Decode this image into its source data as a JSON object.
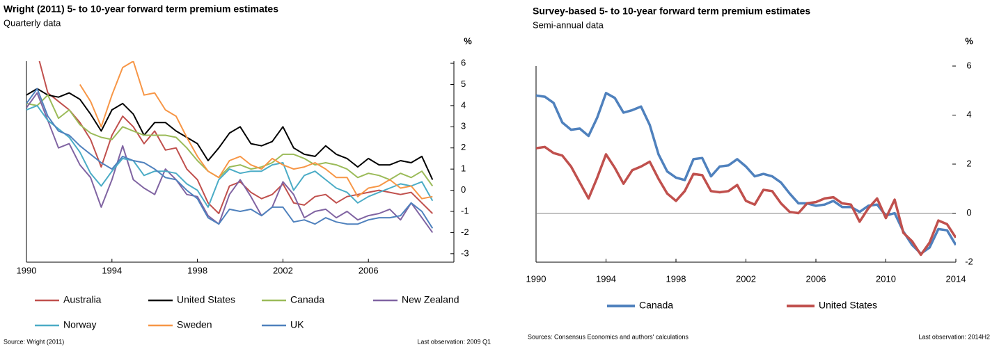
{
  "chart_data": [
    {
      "type": "line",
      "title": "Wright (2011)  5- to 10-year forward term premium estimates",
      "subtitle": "Quarterly data",
      "unit": "%",
      "source": "Source: Wright (2011)",
      "note": "Last observation: 2009 Q1",
      "x": [
        1990,
        1990.5,
        1991,
        1991.5,
        1992,
        1992.5,
        1993,
        1993.5,
        1994,
        1994.5,
        1995,
        1995.5,
        1996,
        1996.5,
        1997,
        1997.5,
        1998,
        1998.5,
        1999,
        1999.5,
        2000,
        2000.5,
        2001,
        2001.5,
        2002,
        2002.5,
        2003,
        2003.5,
        2004,
        2004.5,
        2005,
        2005.5,
        2006,
        2006.5,
        2007,
        2007.5,
        2008,
        2008.5,
        2009
      ],
      "xlim": [
        1990,
        2010
      ],
      "xticks": [
        1990,
        1994,
        1998,
        2002,
        2006
      ],
      "ylim": [
        -3.4,
        6.1
      ],
      "yticks": [
        6,
        5,
        4,
        3,
        2,
        1,
        0,
        -1,
        -2,
        -3
      ],
      "series": [
        {
          "name": "Australia",
          "color": "#c0504d",
          "values": [
            null,
            6.5,
            4.6,
            4.2,
            3.8,
            3.2,
            2.4,
            1.1,
            2.6,
            3.5,
            3.0,
            2.2,
            2.8,
            1.9,
            2.0,
            1.0,
            0.5,
            -0.6,
            -1.1,
            0.2,
            0.4,
            -0.1,
            -0.4,
            -0.2,
            0.3,
            -0.6,
            -0.7,
            -0.3,
            -0.2,
            -0.6,
            -0.3,
            -0.2,
            -0.1,
            0.0,
            -0.1,
            -0.2,
            -0.1,
            -0.6,
            -1.1
          ]
        },
        {
          "name": "United States",
          "color": "#000000",
          "values": [
            4.5,
            4.8,
            4.5,
            4.4,
            4.6,
            4.3,
            3.6,
            2.8,
            3.8,
            4.1,
            3.6,
            2.6,
            3.2,
            3.2,
            2.8,
            2.5,
            2.2,
            1.4,
            2.0,
            2.7,
            3.0,
            2.2,
            2.1,
            2.3,
            3.0,
            2.0,
            1.7,
            1.6,
            2.1,
            1.7,
            1.5,
            1.1,
            1.5,
            1.2,
            1.2,
            1.4,
            1.3,
            1.6,
            0.5
          ]
        },
        {
          "name": "Canada",
          "color": "#9bbb59",
          "values": [
            4.1,
            4.0,
            4.5,
            3.4,
            3.8,
            3.1,
            2.7,
            2.5,
            2.4,
            3.0,
            2.8,
            2.6,
            2.6,
            2.6,
            2.5,
            2.0,
            1.4,
            0.9,
            0.6,
            1.1,
            1.2,
            1.0,
            1.1,
            1.3,
            1.7,
            1.7,
            1.5,
            1.2,
            1.3,
            1.2,
            1.0,
            0.6,
            0.8,
            0.7,
            0.5,
            0.8,
            0.6,
            0.9,
            0.2
          ]
        },
        {
          "name": "New Zealand",
          "color": "#8064a2",
          "values": [
            3.9,
            4.6,
            3.3,
            2.0,
            2.2,
            1.2,
            0.6,
            -0.8,
            0.5,
            2.1,
            0.5,
            0.1,
            -0.2,
            1.0,
            0.5,
            -0.2,
            -0.3,
            -1.2,
            -1.6,
            -0.2,
            0.5,
            -0.3,
            -1.2,
            -0.8,
            0.4,
            -0.2,
            -1.3,
            -1.0,
            -0.9,
            -1.3,
            -1.0,
            -1.4,
            -1.2,
            -1.1,
            -0.9,
            -1.4,
            -0.6,
            -1.3,
            -2.0
          ]
        },
        {
          "name": "Norway",
          "color": "#4bacc6",
          "values": [
            3.8,
            4.0,
            3.3,
            2.9,
            2.5,
            1.8,
            0.8,
            0.2,
            0.9,
            1.5,
            1.4,
            0.7,
            0.9,
            0.9,
            0.8,
            0.3,
            0.0,
            -0.8,
            0.5,
            1.0,
            0.8,
            0.9,
            0.9,
            1.2,
            1.3,
            0.0,
            0.7,
            0.9,
            0.5,
            0.1,
            -0.1,
            -0.6,
            -0.3,
            -0.1,
            0.1,
            0.3,
            0.2,
            0.4,
            -0.5
          ]
        },
        {
          "name": "Sweden",
          "color": "#f79646",
          "values": [
            null,
            null,
            null,
            null,
            null,
            5.0,
            4.2,
            3.0,
            4.5,
            5.8,
            6.1,
            4.5,
            4.6,
            3.8,
            3.5,
            2.5,
            1.6,
            0.9,
            0.6,
            1.4,
            1.6,
            1.2,
            1.0,
            1.5,
            1.2,
            1.0,
            1.1,
            1.3,
            1.0,
            0.6,
            0.6,
            -0.3,
            0.1,
            0.2,
            0.5,
            0.1,
            0.2,
            -0.4,
            -0.3
          ]
        },
        {
          "name": "UK",
          "color": "#4f81bd",
          "values": [
            4.1,
            4.8,
            3.5,
            2.8,
            2.6,
            2.1,
            1.7,
            1.3,
            1.0,
            1.6,
            1.4,
            1.3,
            1.0,
            0.6,
            0.5,
            0.0,
            -0.4,
            -1.3,
            -1.6,
            -0.9,
            -1.0,
            -0.9,
            -1.2,
            -0.8,
            -0.8,
            -1.5,
            -1.4,
            -1.6,
            -1.3,
            -1.5,
            -1.6,
            -1.6,
            -1.4,
            -1.3,
            -1.3,
            -1.2,
            -0.6,
            -1.0,
            -1.8
          ]
        }
      ],
      "zero_line": false
    },
    {
      "type": "line",
      "title": "Survey-based 5- to 10-year forward term premium estimates",
      "subtitle": "Semi-annual data",
      "unit": "%",
      "source": "Sources: Consensus  Economics and authors' calculations",
      "note": "Last observation: 2014H2",
      "x": [
        1990,
        1990.5,
        1991,
        1991.5,
        1992,
        1992.5,
        1993,
        1993.5,
        1994,
        1994.5,
        1995,
        1995.5,
        1996,
        1996.5,
        1997,
        1997.5,
        1998,
        1998.5,
        1999,
        1999.5,
        2000,
        2000.5,
        2001,
        2001.5,
        2002,
        2002.5,
        2003,
        2003.5,
        2004,
        2004.5,
        2005,
        2005.5,
        2006,
        2006.5,
        2007,
        2007.5,
        2008,
        2008.5,
        2009,
        2009.5,
        2010,
        2010.5,
        2011,
        2011.5,
        2012,
        2012.5,
        2013,
        2013.5,
        2014
      ],
      "xlim": [
        1990,
        2014
      ],
      "xticks": [
        1990,
        1994,
        1998,
        2002,
        2006,
        2010,
        2014
      ],
      "ylim": [
        -2,
        6
      ],
      "yticks": [
        6,
        4,
        2,
        0,
        -2
      ],
      "series": [
        {
          "name": "Canada",
          "color": "#4f81bd",
          "values": [
            4.8,
            4.75,
            4.5,
            3.7,
            3.4,
            3.45,
            3.15,
            3.9,
            4.9,
            4.7,
            4.1,
            4.2,
            4.35,
            3.6,
            2.4,
            1.7,
            1.45,
            1.35,
            2.2,
            2.25,
            1.5,
            1.9,
            1.95,
            2.2,
            1.9,
            1.5,
            1.6,
            1.5,
            1.25,
            0.8,
            0.4,
            0.4,
            0.3,
            0.35,
            0.5,
            0.25,
            0.25,
            0.05,
            0.3,
            0.35,
            -0.1,
            0.0,
            -0.75,
            -1.3,
            -1.65,
            -1.4,
            -0.65,
            -0.7,
            -1.3
          ]
        },
        {
          "name": "United States",
          "color": "#c0504d",
          "values": [
            2.65,
            2.7,
            2.45,
            2.35,
            1.9,
            1.25,
            0.6,
            1.45,
            2.4,
            1.85,
            1.2,
            1.75,
            1.9,
            2.1,
            1.4,
            0.8,
            0.5,
            0.9,
            1.6,
            1.55,
            0.9,
            0.85,
            0.9,
            1.15,
            0.5,
            0.35,
            0.95,
            0.9,
            0.4,
            0.05,
            0.0,
            0.4,
            0.45,
            0.6,
            0.65,
            0.4,
            0.35,
            -0.35,
            0.2,
            0.6,
            -0.2,
            0.55,
            -0.8,
            -1.15,
            -1.7,
            -1.2,
            -0.3,
            -0.45,
            -1.0
          ]
        }
      ],
      "zero_line": true
    }
  ]
}
